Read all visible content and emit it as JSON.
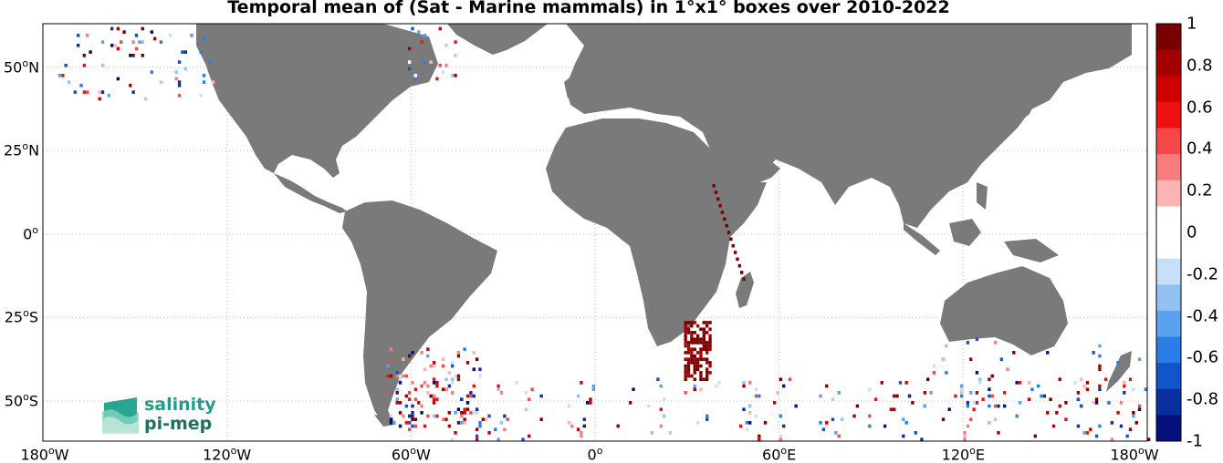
{
  "map": {
    "title": "Temporal mean of (Sat - Marine mammals) in 1°x1° boxes over 2010-2022",
    "lat_ticks": [
      {
        "value": 50,
        "text": "50°N",
        "label": "50",
        "suffix": "N"
      },
      {
        "value": 25,
        "text": "25°N",
        "label": "25",
        "suffix": "N"
      },
      {
        "value": 0,
        "text": "0°",
        "label": "0",
        "suffix": ""
      },
      {
        "value": -25,
        "text": "25°S",
        "label": "25",
        "suffix": "S"
      },
      {
        "value": -50,
        "text": "50°S",
        "label": "50",
        "suffix": "S"
      }
    ],
    "lon_ticks": [
      {
        "value": -180,
        "label": "180",
        "suffix": "W"
      },
      {
        "value": -120,
        "label": "120",
        "suffix": "W"
      },
      {
        "value": -60,
        "label": "60",
        "suffix": "W"
      },
      {
        "value": 0,
        "label": "0",
        "suffix": ""
      },
      {
        "value": 60,
        "label": "60",
        "suffix": "E"
      },
      {
        "value": 120,
        "label": "120",
        "suffix": "E"
      },
      {
        "value": 180,
        "label": "180",
        "suffix": "W"
      }
    ],
    "lat_range": [
      -62,
      63
    ],
    "lon_range": [
      -180,
      180
    ],
    "land_color": "#7a7a7a",
    "grid": "dotted"
  },
  "colorbar": {
    "range": [
      -1,
      1
    ],
    "ticks": [
      "1",
      "0.8",
      "0.6",
      "0.4",
      "0.2",
      "0",
      "-0.2",
      "-0.4",
      "-0.6",
      "-0.8",
      "-1"
    ],
    "colors": [
      "#7a0000",
      "#a50000",
      "#cc0000",
      "#ee1111",
      "#f44848",
      "#f77c7c",
      "#fbb4b4",
      "#ffffff",
      "#ffffff",
      "#c7e0f7",
      "#92c2f2",
      "#5aa2ee",
      "#2b7de6",
      "#1055c9",
      "#0a30a0",
      "#03107a"
    ]
  },
  "logo": {
    "line1": "salinity",
    "line2": "pi-mep"
  }
}
